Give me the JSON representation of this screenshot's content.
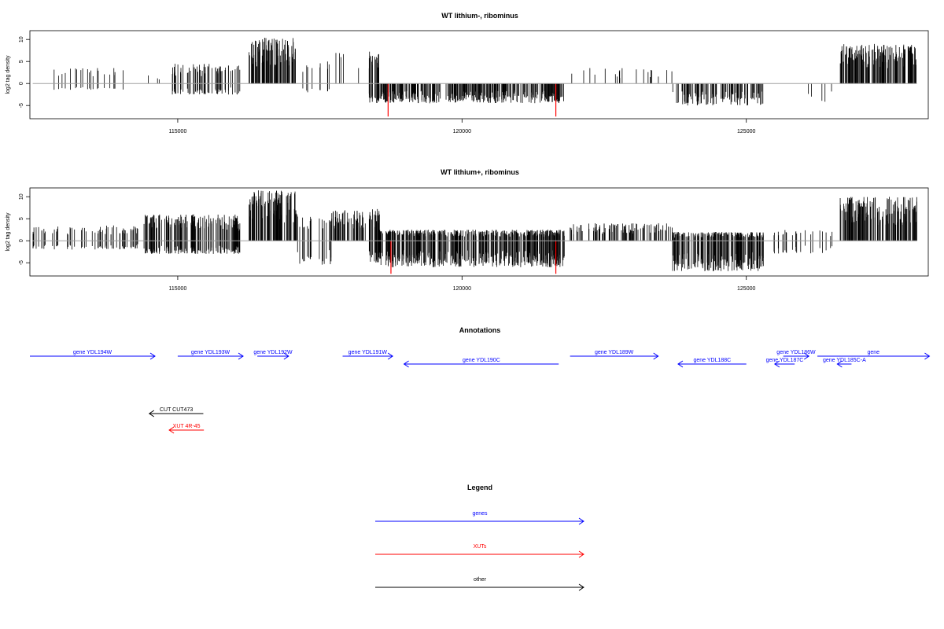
{
  "chart_data": [
    {
      "type": "bar",
      "title": "WT lithium-, ribominus",
      "ylabel": "log2 tag density",
      "xlabel": "",
      "xlim": [
        112400,
        128200
      ],
      "ylim": [
        -8,
        12
      ],
      "x_ticks": [
        115000,
        120000,
        125000
      ],
      "y_ticks": [
        -5,
        0,
        5,
        10
      ],
      "x_tick_labels": [
        "115000",
        "120000",
        "125000"
      ],
      "y_tick_labels": [
        "-5",
        "0",
        "5",
        "10"
      ],
      "grid": false,
      "colors": {
        "bars": "#000000",
        "highlight": "#ff0000",
        "baseline": "#a0a0a0"
      },
      "highlight_x": [
        118700,
        121650
      ],
      "highlight_values": [
        -7.5,
        -7.5
      ],
      "bins": [
        {
          "start": 112450,
          "end": 114250,
          "max_pos": 3.5,
          "max_neg": -1.5,
          "density": 0.18
        },
        {
          "start": 114300,
          "end": 114700,
          "max_pos": 2,
          "max_neg": 0,
          "density": 0.1
        },
        {
          "start": 114900,
          "end": 116100,
          "max_pos": 4.5,
          "max_neg": -2.5,
          "density": 0.5
        },
        {
          "start": 116250,
          "end": 117100,
          "max_pos": 10.5,
          "max_neg": 0,
          "density": 1.0
        },
        {
          "start": 117100,
          "end": 117700,
          "max_pos": 5,
          "max_neg": -2,
          "density": 0.25
        },
        {
          "start": 117700,
          "end": 118200,
          "max_pos": 7,
          "max_neg": 0,
          "density": 0.3
        },
        {
          "start": 118350,
          "end": 118550,
          "max_pos": 7.5,
          "max_neg": -4.5,
          "density": 0.9
        },
        {
          "start": 118550,
          "end": 121800,
          "max_pos": 0,
          "max_neg": -4.5,
          "density": 0.9
        },
        {
          "start": 121900,
          "end": 123700,
          "max_pos": 3.5,
          "max_neg": 0,
          "density": 0.2
        },
        {
          "start": 123700,
          "end": 125300,
          "max_pos": 0,
          "max_neg": -5,
          "density": 0.6
        },
        {
          "start": 125800,
          "end": 126600,
          "max_pos": 0,
          "max_neg": -4.5,
          "density": 0.15
        },
        {
          "start": 126650,
          "end": 128000,
          "max_pos": 9,
          "max_neg": 0,
          "density": 1.0
        }
      ]
    },
    {
      "type": "bar",
      "title": "WT lithium+, ribominus",
      "ylabel": "log2 tag density",
      "xlabel": "",
      "xlim": [
        112400,
        128200
      ],
      "ylim": [
        -8,
        12
      ],
      "x_ticks": [
        115000,
        120000,
        125000
      ],
      "y_ticks": [
        -5,
        0,
        5,
        10
      ],
      "x_tick_labels": [
        "115000",
        "120000",
        "125000"
      ],
      "y_tick_labels": [
        "-5",
        "0",
        "5",
        "10"
      ],
      "grid": false,
      "colors": {
        "bars": "#000000",
        "highlight": "#ff0000",
        "baseline": "#a0a0a0"
      },
      "highlight_x": [
        118750,
        121650
      ],
      "highlight_values": [
        -7.5,
        -7.5
      ],
      "bins": [
        {
          "start": 112450,
          "end": 114300,
          "max_pos": 3.5,
          "max_neg": -2,
          "density": 0.45
        },
        {
          "start": 114400,
          "end": 116100,
          "max_pos": 6,
          "max_neg": -3,
          "density": 0.7
        },
        {
          "start": 116250,
          "end": 117100,
          "max_pos": 11.5,
          "max_neg": 0,
          "density": 1.0
        },
        {
          "start": 117100,
          "end": 117700,
          "max_pos": 6,
          "max_neg": -5.5,
          "density": 0.4
        },
        {
          "start": 117700,
          "end": 118300,
          "max_pos": 7,
          "max_neg": 0,
          "density": 0.8
        },
        {
          "start": 118350,
          "end": 118550,
          "max_pos": 7.5,
          "max_neg": -5,
          "density": 0.9
        },
        {
          "start": 118550,
          "end": 121800,
          "max_pos": 2.5,
          "max_neg": -6,
          "density": 1.0
        },
        {
          "start": 121900,
          "end": 123700,
          "max_pos": 4,
          "max_neg": 0,
          "density": 0.55
        },
        {
          "start": 123700,
          "end": 125300,
          "max_pos": 2,
          "max_neg": -7,
          "density": 1.0
        },
        {
          "start": 125400,
          "end": 126600,
          "max_pos": 2.5,
          "max_neg": -3,
          "density": 0.3
        },
        {
          "start": 126650,
          "end": 128000,
          "max_pos": 10,
          "max_neg": 0,
          "density": 1.0
        }
      ]
    }
  ],
  "annotations": {
    "title": "Annotations",
    "features": [
      {
        "label": "gene YDL194W",
        "category": "genes",
        "strand": "+",
        "start": 112400,
        "end": 114600,
        "row": 0
      },
      {
        "label": "gene YDL193W",
        "category": "genes",
        "strand": "+",
        "start": 115000,
        "end": 116150,
        "row": 0
      },
      {
        "label": "gene YDL192W",
        "category": "genes",
        "strand": "+",
        "start": 116400,
        "end": 116950,
        "row": 0
      },
      {
        "label": "gene YDL191W",
        "category": "genes",
        "strand": "+",
        "start": 117900,
        "end": 118780,
        "row": 0
      },
      {
        "label": "gene YDL190C",
        "category": "genes",
        "strand": "-",
        "start": 118980,
        "end": 121700,
        "row": 1
      },
      {
        "label": "gene YDL189W",
        "category": "genes",
        "strand": "+",
        "start": 121900,
        "end": 123450,
        "row": 0
      },
      {
        "label": "gene YDL188C",
        "category": "genes",
        "strand": "-",
        "start": 123800,
        "end": 125000,
        "row": 1
      },
      {
        "label": "gene YDL186W",
        "category": "genes",
        "strand": "+",
        "start": 125650,
        "end": 126100,
        "row": 0
      },
      {
        "label": "gene YDL187C",
        "category": "genes",
        "strand": "-",
        "start": 125500,
        "end": 125850,
        "row": 1
      },
      {
        "label": "gene YDL185C-A",
        "category": "genes",
        "strand": "-",
        "start": 126600,
        "end": 126850,
        "row": 1
      },
      {
        "label": "gene",
        "category": "genes",
        "strand": "+",
        "start": 126250,
        "end": 128220,
        "row": 0
      },
      {
        "label": "CUT CUT473",
        "category": "other",
        "strand": "-",
        "start": 114500,
        "end": 115450,
        "row": 2
      },
      {
        "label": "XUT 4R-45",
        "category": "XUTs",
        "strand": "-",
        "start": 114850,
        "end": 115460,
        "row": 3
      }
    ]
  },
  "legend": {
    "title": "Legend",
    "items": [
      {
        "label": "genes",
        "color": "#0000ff"
      },
      {
        "label": "XUTs",
        "color": "#ff0000"
      },
      {
        "label": "other",
        "color": "#000000"
      }
    ]
  }
}
